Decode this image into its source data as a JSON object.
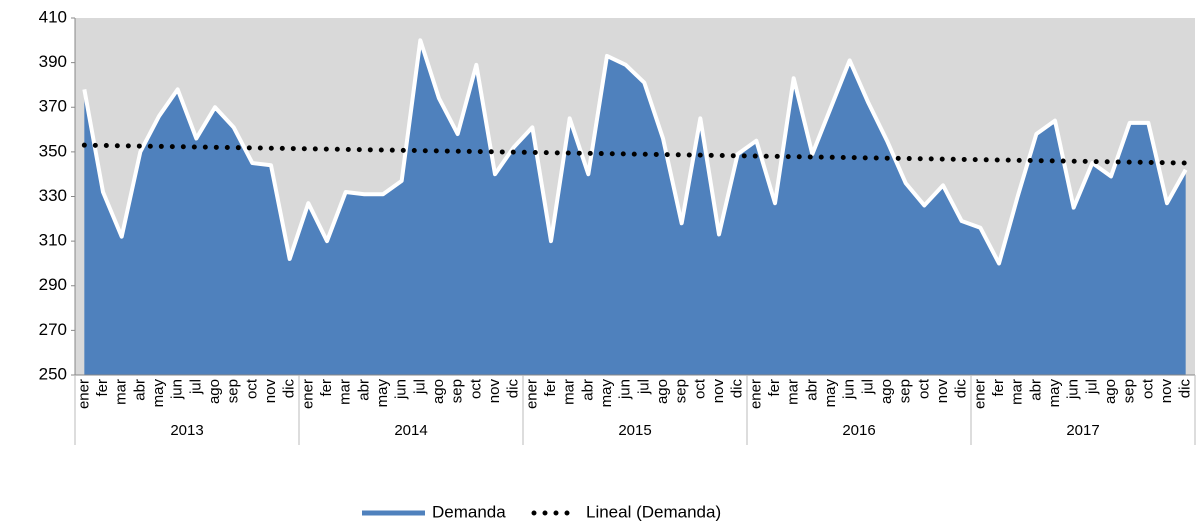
{
  "chart_data": {
    "type": "area",
    "categories": [
      "ener",
      "fer",
      "mar",
      "abr",
      "may",
      "jun",
      "jul",
      "ago",
      "sep",
      "oct",
      "nov",
      "dic",
      "ener",
      "fer",
      "mar",
      "abr",
      "may",
      "jun",
      "jul",
      "ago",
      "sep",
      "oct",
      "nov",
      "dic",
      "ener",
      "fer",
      "mar",
      "abr",
      "may",
      "jun",
      "jul",
      "ago",
      "sep",
      "oct",
      "nov",
      "dic",
      "ener",
      "fer",
      "mar",
      "abr",
      "may",
      "jun",
      "jul",
      "ago",
      "sep",
      "oct",
      "nov",
      "dic",
      "ener",
      "fer",
      "mar",
      "abr",
      "may",
      "jun",
      "jul",
      "ago",
      "sep",
      "oct",
      "nov",
      "dic"
    ],
    "groups": [
      "2013",
      "2014",
      "2015",
      "2016",
      "2017"
    ],
    "series": [
      {
        "name": "Demanda",
        "color": "#4f81bd",
        "values": [
          378,
          332,
          312,
          350,
          366,
          378,
          356,
          370,
          361,
          345,
          344,
          302,
          327,
          310,
          332,
          331,
          331,
          337,
          400,
          374,
          358,
          389,
          340,
          352,
          361,
          310,
          365,
          340,
          393,
          389,
          381,
          356,
          318,
          365,
          313,
          349,
          355,
          327,
          383,
          349,
          370,
          391,
          372,
          355,
          336,
          326,
          335,
          319,
          316,
          300,
          330,
          358,
          364,
          325,
          345,
          339,
          363,
          363,
          327,
          342
        ]
      }
    ],
    "trendline": {
      "name": "Lineal (Demanda)",
      "color": "#000000",
      "values": [
        353,
        345
      ]
    },
    "ylim": [
      250,
      410
    ],
    "yticks": [
      250,
      270,
      290,
      310,
      330,
      350,
      370,
      390,
      410
    ],
    "plot_background": "#d9d9d9",
    "legend": "bottom"
  }
}
